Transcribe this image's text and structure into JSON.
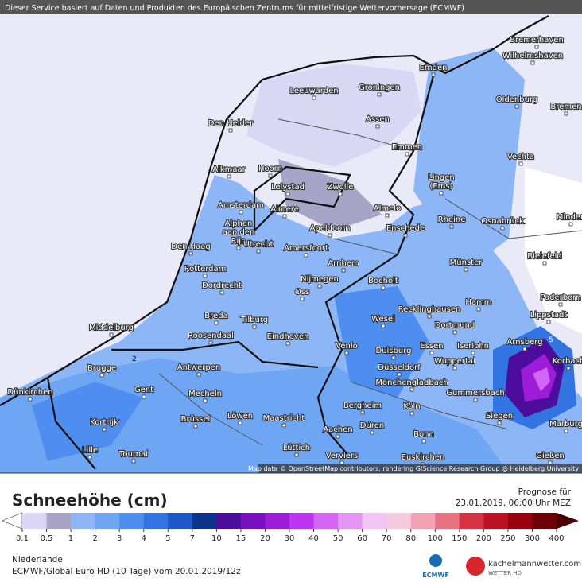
{
  "header": "Dieser Service basiert auf Daten und Produkten des Europäischen Zentrums für mittelfristige Wettervorhersage (ECMWF)",
  "cities": [
    "Bremerhaven",
    "Wilhelmshaven",
    "Emden",
    "Oldenburg",
    "Bremen",
    "Leeuwarden",
    "Groningen",
    "Assen",
    "Den Helder",
    "Emmen",
    "Vechta",
    "Alkmaar",
    "Hoorn",
    "Lelystad",
    "Zwolle",
    [
      "Lingen",
      "(Ems)"
    ],
    "Amsterdam",
    "Almere",
    "Almelo",
    "Rheine",
    "Osnabrück",
    "Minden",
    [
      "Alphen",
      "aan den",
      "Rijn"
    ],
    "Utrecht",
    "Apeldoorn",
    "Enschede",
    "Den Haag",
    "Amersfoort",
    "Bielefeld",
    "Arnhem",
    "Münster",
    "Rotterdam",
    "Nijmegen",
    "Bocholt",
    "Dordrecht",
    "Oss",
    "Paderborn",
    "Hamm",
    "Recklinghausen",
    "Lippstadt",
    "Breda",
    "Tilburg",
    "Wesel",
    "Dortmund",
    "Middelburg",
    "Roosendaal",
    "Eindhoven",
    "Arnsberg",
    "Venlo",
    "Duisburg",
    "Essen",
    "Iserlohn",
    "Korbach",
    "Brugge",
    "Antwerpen",
    "Düsseldorf",
    "Wuppertal",
    "Gent",
    "Mönchengladbach",
    "Dünkirchen",
    "Mecheln",
    "Gummersbach",
    "Bergheim",
    "Köln",
    "Kortrijk",
    "Brüssel",
    "Löwen",
    "Maastricht",
    "Siegen",
    "Düren",
    "Marburg",
    "Aachen",
    "Bonn",
    "Lille",
    "Tournai",
    "Lüttich",
    "Verviers",
    "Euskirchen",
    "Gießen"
  ],
  "contour_labels": [
    "5",
    "2"
  ],
  "attribution": "Map data © OpenStreetMap contributors, rendering GIScience Research Group @ Heidelberg University",
  "legend": {
    "title": "Schneehöhe (cm)",
    "levels": [
      0.1,
      0.5,
      1,
      2,
      3,
      4,
      5,
      7,
      10,
      15,
      20,
      30,
      40,
      50,
      60,
      70,
      80,
      100,
      150,
      200,
      250,
      300,
      400
    ],
    "colors": [
      "#d8d8f4",
      "#a8a4c8",
      "#8cb6f6",
      "#6ea6f4",
      "#4d8ef0",
      "#3274e2",
      "#1c56c8",
      "#0c348e",
      "#4c0c9c",
      "#7810c0",
      "#9c1cd8",
      "#bc34f0",
      "#d264f6",
      "#e496f6",
      "#f0c4f4",
      "#f6cade",
      "#f2a2b2",
      "#e87282",
      "#d63444",
      "#bc1222",
      "#980010",
      "#700008"
    ],
    "below_color": "#ffffff",
    "above_color": "#4a0000"
  },
  "forecast": {
    "label": "Prognose für",
    "time": "23.01.2019, 06:00 Uhr MEZ"
  },
  "region": "Niederlande",
  "model": "ECMWF/Global Euro HD (10 Tage) vom 20.01.2019/12z",
  "logos": {
    "ecmwf": "ECMWF",
    "site": "kachelmannwetter.com",
    "site_sub": "WETTER HD"
  }
}
